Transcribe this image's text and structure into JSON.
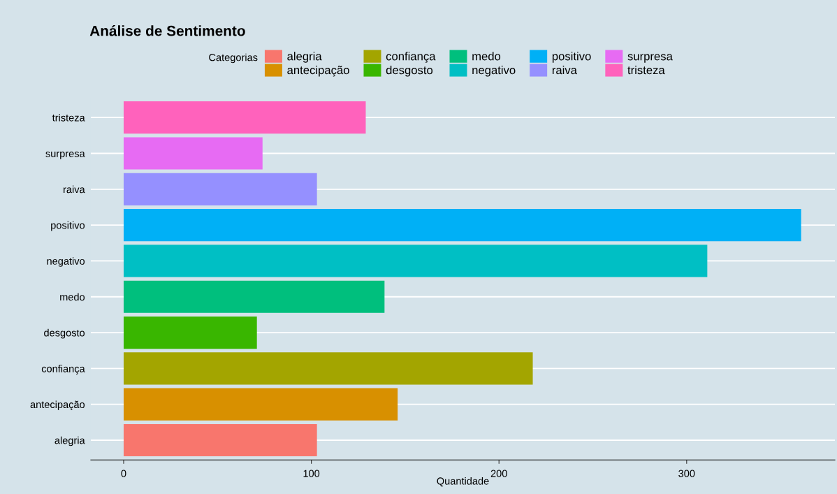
{
  "chart_data": {
    "type": "bar",
    "title": "Análise de Sentimento",
    "xlabel": "Quantidade",
    "legend_title": "Categorias",
    "orientation": "horizontal",
    "categories": [
      "tristeza",
      "surpresa",
      "raiva",
      "positivo",
      "negativo",
      "medo",
      "desgosto",
      "confiança",
      "antecipação",
      "alegria"
    ],
    "series": [
      {
        "name": "alegria",
        "color": "#f8766d",
        "values": [
          null,
          null,
          null,
          null,
          null,
          null,
          null,
          null,
          null,
          103
        ]
      },
      {
        "name": "antecipação",
        "color": "#d89000",
        "values": [
          null,
          null,
          null,
          null,
          null,
          null,
          null,
          null,
          146,
          null
        ]
      },
      {
        "name": "confiança",
        "color": "#a3a500",
        "values": [
          null,
          null,
          null,
          null,
          null,
          null,
          null,
          218,
          null,
          null
        ]
      },
      {
        "name": "desgosto",
        "color": "#39b600",
        "values": [
          null,
          null,
          null,
          null,
          null,
          null,
          71,
          null,
          null,
          null
        ]
      },
      {
        "name": "medo",
        "color": "#00bf7d",
        "values": [
          null,
          null,
          null,
          null,
          null,
          139,
          null,
          null,
          null,
          null
        ]
      },
      {
        "name": "negativo",
        "color": "#00bfc4",
        "values": [
          null,
          null,
          null,
          null,
          311,
          null,
          null,
          null,
          null,
          null
        ]
      },
      {
        "name": "positivo",
        "color": "#00b0f6",
        "values": [
          null,
          null,
          null,
          361,
          null,
          null,
          null,
          null,
          null,
          null
        ]
      },
      {
        "name": "raiva",
        "color": "#9590ff",
        "values": [
          null,
          null,
          103,
          null,
          null,
          null,
          null,
          null,
          null,
          null
        ]
      },
      {
        "name": "surpresa",
        "color": "#e76bf3",
        "values": [
          null,
          74,
          null,
          null,
          null,
          null,
          null,
          null,
          null,
          null
        ]
      },
      {
        "name": "tristeza",
        "color": "#ff62bc",
        "values": [
          129,
          null,
          null,
          null,
          null,
          null,
          null,
          null,
          null,
          null
        ]
      }
    ],
    "xlim": [
      -17.5,
      379
    ],
    "xticks": [
      0,
      100,
      200,
      300
    ],
    "grid": "y",
    "legend": "top"
  }
}
